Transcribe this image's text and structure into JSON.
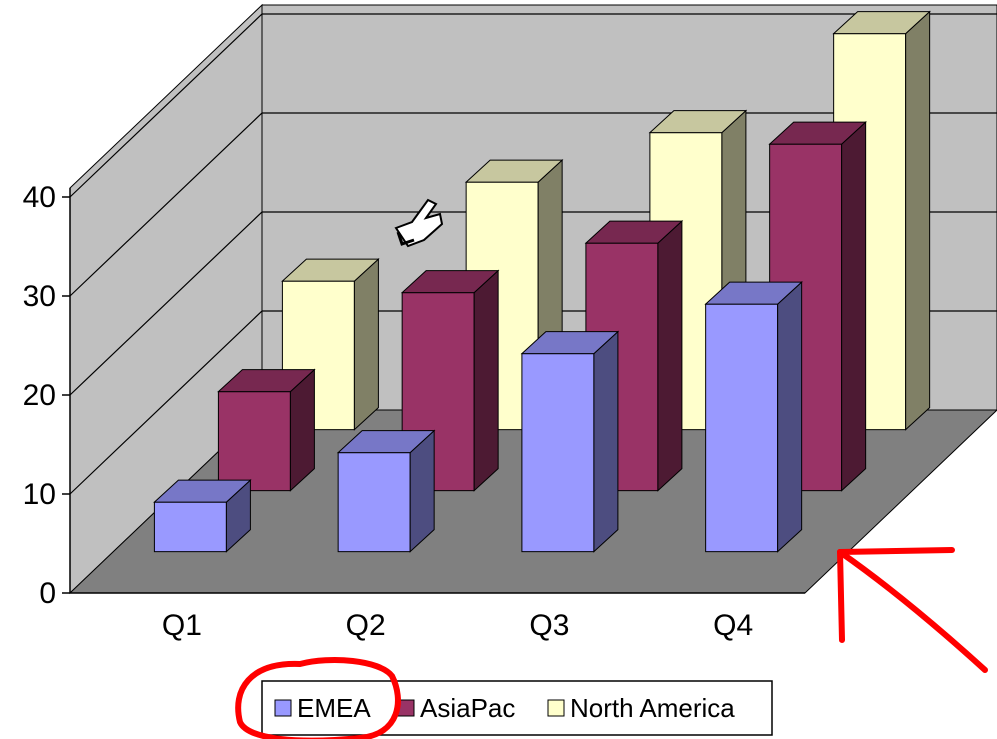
{
  "chart_data": {
    "type": "bar",
    "style": "3d-clustered-column",
    "categories": [
      "Q1",
      "Q2",
      "Q3",
      "Q4"
    ],
    "series": [
      {
        "name": "EMEA",
        "values": [
          5,
          10,
          20,
          25
        ],
        "color": "#9999ff"
      },
      {
        "name": "AsiaPac",
        "values": [
          10,
          20,
          25,
          35
        ],
        "color": "#993366"
      },
      {
        "name": "North America",
        "values": [
          15,
          25,
          30,
          40
        ],
        "color": "#ffffcc"
      }
    ],
    "ylim": [
      0,
      40
    ],
    "yticks": [
      0,
      10,
      20,
      30,
      40
    ],
    "grid": true,
    "legend_position": "bottom",
    "colors": {
      "wall": "#c0c0c0",
      "floor": "#808080",
      "annotation": "#ff0000"
    }
  },
  "annotations": {
    "pointer_cursor": "pointing-hand-cursor-icon",
    "highlight_circle": "red-circle-around-legend-entry",
    "arrow": "red-arrow-pointing-to-floor"
  }
}
